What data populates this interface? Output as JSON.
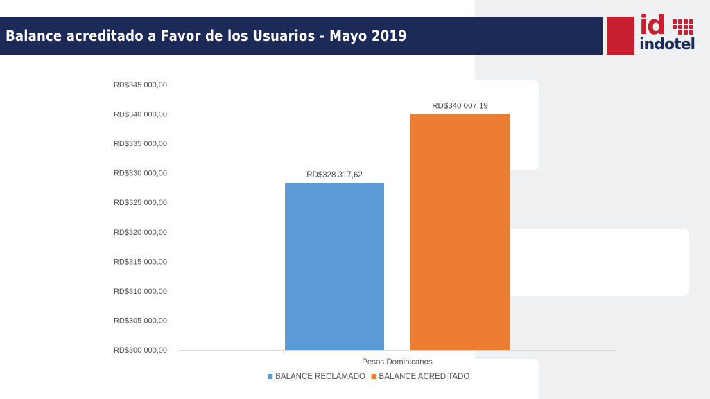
{
  "header": {
    "title": "Balance acreditado a Favor de los Usuarios - Mayo 2019"
  },
  "logo": {
    "mark": "id",
    "wordmark": "indotel",
    "colors": {
      "red": "#c8202e",
      "navy": "#1b2a57"
    }
  },
  "chart_data": {
    "type": "bar",
    "title": "",
    "xlabel": "",
    "ylabel": "",
    "categories": [
      "Pesos Dominicanos"
    ],
    "series": [
      {
        "name": "BALANCE RECLAMADO",
        "values": [
          328317.62
        ],
        "label": "RD$328 317,62",
        "color": "#5b9bd5"
      },
      {
        "name": "BALANCE ACREDITADO",
        "values": [
          340007.19
        ],
        "label": "RD$340 007,19",
        "color": "#ed7d31"
      }
    ],
    "ylim": [
      300000,
      345000
    ],
    "ytick_step": 5000,
    "ytick_labels": [
      "RD$300 000,00",
      "RD$305 000,00",
      "RD$310 000,00",
      "RD$315 000,00",
      "RD$320 000,00",
      "RD$325 000,00",
      "RD$330 000,00",
      "RD$335 000,00",
      "RD$340 000,00",
      "RD$345 000,00"
    ],
    "grid": false,
    "legend": "bottom-center"
  }
}
